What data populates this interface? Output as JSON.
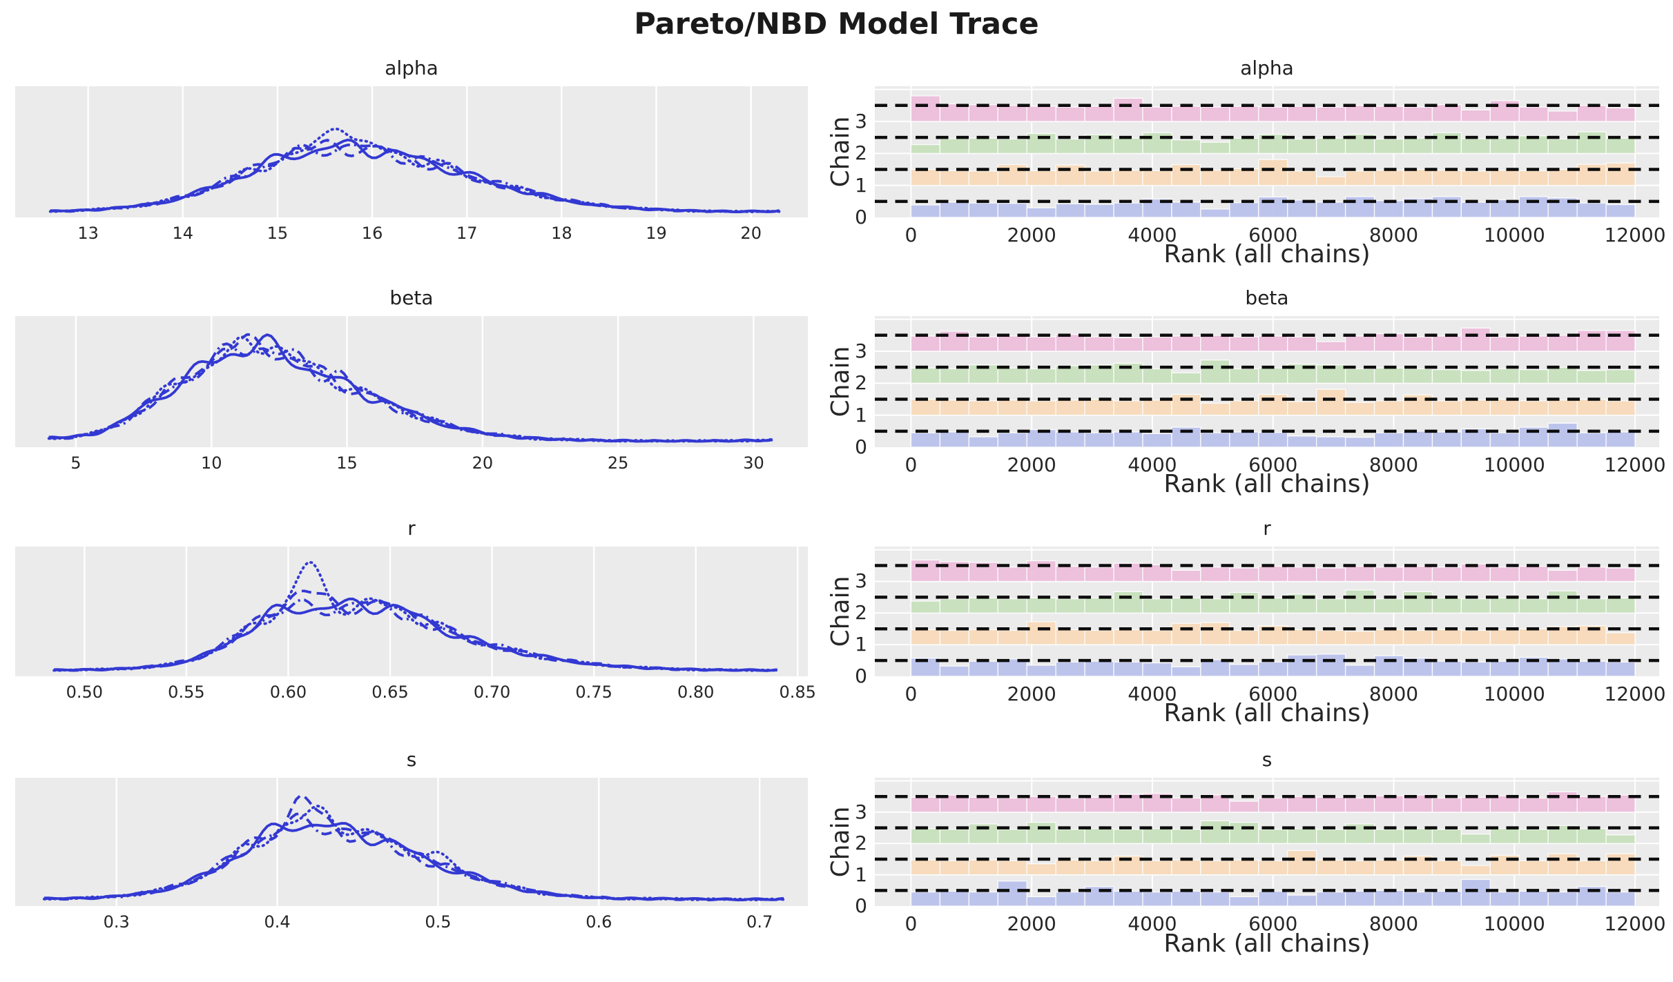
{
  "title": "Pareto/NBD Model Trace",
  "rank_xlabel": "Rank (all chains)",
  "rank_ylabel": "Chain",
  "style": {
    "figure_bg": "#ffffff",
    "axes_bg": "#ebebeb",
    "grid_color": "#ffffff",
    "kde_color": "#3339d2",
    "ref_line_color": "#0d0d0d",
    "text_color": "#262626",
    "chain_bar_colors": [
      "#b8c0ec",
      "#f7d9b7",
      "#c6dfba",
      "#edbcda"
    ],
    "chain_linestyles": [
      "solid",
      "dashed",
      "dashdot",
      "dotted"
    ]
  },
  "chart_data": {
    "type": "trace",
    "n_chains": 4,
    "draws_total": 12000,
    "rank_bins": 25,
    "rank_yticks": [
      "0",
      "1",
      "2",
      "3"
    ],
    "rank_xticks": {
      "values": [
        0,
        2000,
        4000,
        6000,
        8000,
        10000,
        12000
      ],
      "labels": [
        "0",
        "2000",
        "4000",
        "6000",
        "8000",
        "10000",
        "12000"
      ],
      "xlim": [
        -600,
        12400
      ]
    },
    "params": [
      {
        "name": "alpha",
        "kde": {
          "xlim": [
            12.23,
            20.6
          ],
          "ticks": [
            13,
            14,
            15,
            16,
            17,
            18,
            19,
            20
          ],
          "tick_labels": [
            "13",
            "14",
            "15",
            "16",
            "17",
            "18",
            "19",
            "20"
          ],
          "ymax": 1.85,
          "points": [
            [
              12.6,
              0.03
            ],
            [
              13.0,
              0.045
            ],
            [
              13.4,
              0.09
            ],
            [
              13.8,
              0.16
            ],
            [
              14.2,
              0.32
            ],
            [
              14.6,
              0.55
            ],
            [
              15.0,
              0.8
            ],
            [
              15.3,
              0.93
            ],
            [
              15.6,
              1.0
            ],
            [
              15.9,
              0.97
            ],
            [
              16.2,
              0.92
            ],
            [
              16.5,
              0.78
            ],
            [
              16.8,
              0.68
            ],
            [
              17.1,
              0.52
            ],
            [
              17.4,
              0.4
            ],
            [
              17.7,
              0.3
            ],
            [
              18.0,
              0.2
            ],
            [
              18.3,
              0.13
            ],
            [
              18.7,
              0.08
            ],
            [
              19.0,
              0.055
            ],
            [
              19.4,
              0.035
            ],
            [
              19.8,
              0.025
            ],
            [
              20.3,
              0.03
            ]
          ],
          "spikes": [
            {
              "chain": 3,
              "x": 15.65,
              "amp": 0.38,
              "w": 0.12
            },
            {
              "chain": 1,
              "x": 15.15,
              "amp": 0.1,
              "w": 0.1
            }
          ]
        },
        "rank_rel_heights": [
          [
            0.78,
            0.95,
            0.9,
            0.88,
            0.6,
            0.85,
            0.82,
            0.9,
            1.15,
            0.95,
            0.52,
            0.92,
            1.28,
            1.08,
            0.95,
            1.3,
            1.05,
            1.18,
            1.3,
            0.95,
            1.1,
            1.3,
            1.22,
            0.9,
            0.8
          ],
          [
            1.0,
            0.92,
            0.9,
            1.3,
            0.92,
            1.28,
            0.9,
            0.95,
            0.92,
            1.3,
            0.95,
            1.05,
            1.62,
            0.9,
            0.55,
            0.9,
            0.95,
            1.0,
            0.95,
            0.9,
            0.95,
            0.92,
            1.0,
            1.32,
            1.4
          ],
          [
            0.55,
            0.92,
            0.95,
            0.9,
            1.25,
            0.9,
            1.18,
            0.95,
            1.3,
            0.85,
            0.7,
            0.95,
            1.2,
            0.9,
            0.95,
            1.2,
            0.9,
            0.95,
            1.3,
            0.92,
            0.95,
            1.1,
            0.9,
            1.35,
            0.95
          ],
          [
            1.6,
            1.1,
            1.05,
            1.0,
            0.95,
            0.9,
            0.95,
            1.45,
            0.9,
            0.95,
            0.9,
            0.95,
            0.9,
            0.95,
            0.9,
            1.0,
            0.95,
            0.9,
            1.05,
            0.72,
            1.3,
            0.9,
            0.65,
            1.0,
            0.85
          ]
        ]
      },
      {
        "name": "beta",
        "kde": {
          "xlim": [
            2.76,
            32.0
          ],
          "ticks": [
            5,
            10,
            15,
            20,
            25,
            30
          ],
          "tick_labels": [
            "5",
            "10",
            "15",
            "20",
            "25",
            "30"
          ],
          "ymax": 1.25,
          "points": [
            [
              4.0,
              0.05
            ],
            [
              4.8,
              0.055
            ],
            [
              5.6,
              0.09
            ],
            [
              6.4,
              0.16
            ],
            [
              7.2,
              0.3
            ],
            [
              8.0,
              0.46
            ],
            [
              8.8,
              0.6
            ],
            [
              9.6,
              0.75
            ],
            [
              10.4,
              0.88
            ],
            [
              11.2,
              0.97
            ],
            [
              11.8,
              1.0
            ],
            [
              12.4,
              0.94
            ],
            [
              13.2,
              0.82
            ],
            [
              14.0,
              0.7
            ],
            [
              14.8,
              0.6
            ],
            [
              15.6,
              0.5
            ],
            [
              16.4,
              0.42
            ],
            [
              17.2,
              0.32
            ],
            [
              18.0,
              0.24
            ],
            [
              18.8,
              0.17
            ],
            [
              19.6,
              0.12
            ],
            [
              20.4,
              0.085
            ],
            [
              21.2,
              0.06
            ],
            [
              22.0,
              0.045
            ],
            [
              23.0,
              0.035
            ],
            [
              24.5,
              0.025
            ],
            [
              26.0,
              0.02
            ],
            [
              27.5,
              0.02
            ],
            [
              29.0,
              0.022
            ],
            [
              30.0,
              0.025
            ],
            [
              30.7,
              0.03
            ]
          ],
          "spikes": [
            {
              "chain": 1,
              "x": 10.4,
              "amp": 0.14,
              "w": 0.25
            },
            {
              "chain": 3,
              "x": 12.2,
              "amp": 0.08,
              "w": 0.3
            },
            {
              "chain": 2,
              "x": 14.7,
              "amp": 0.12,
              "w": 0.25
            }
          ]
        },
        "rank_rel_heights": [
          [
            0.9,
            0.95,
            0.65,
            0.9,
            1.1,
            0.95,
            0.9,
            0.95,
            0.85,
            1.25,
            0.9,
            0.95,
            0.92,
            0.7,
            0.65,
            0.62,
            0.9,
            1.0,
            0.95,
            1.15,
            0.9,
            1.25,
            1.5,
            0.9,
            0.95
          ],
          [
            1.0,
            0.95,
            0.9,
            0.95,
            0.9,
            0.95,
            1.0,
            0.9,
            0.95,
            1.3,
            0.75,
            0.9,
            1.3,
            0.85,
            1.62,
            0.8,
            0.9,
            1.28,
            0.9,
            0.95,
            1.0,
            0.9,
            0.95,
            1.0,
            0.9
          ],
          [
            0.95,
            0.9,
            1.15,
            0.95,
            0.9,
            1.1,
            1.15,
            1.25,
            0.9,
            0.65,
            1.45,
            0.9,
            0.95,
            1.2,
            1.15,
            0.9,
            0.95,
            0.9,
            0.85,
            0.8,
            0.9,
            0.85,
            1.0,
            0.8,
            0.85
          ],
          [
            0.95,
            1.25,
            0.9,
            0.95,
            0.9,
            1.05,
            0.9,
            0.85,
            0.9,
            0.95,
            1.0,
            0.9,
            0.95,
            0.9,
            0.6,
            0.95,
            1.1,
            0.9,
            0.95,
            1.45,
            0.9,
            0.95,
            1.0,
            1.3,
            1.3
          ]
        ]
      },
      {
        "name": "r",
        "kde": {
          "xlim": [
            0.466,
            0.855
          ],
          "ticks": [
            0.5,
            0.55,
            0.6,
            0.65,
            0.7,
            0.75,
            0.8,
            0.85
          ],
          "tick_labels": [
            "0.50",
            "0.55",
            "0.60",
            "0.65",
            "0.70",
            "0.75",
            "0.80",
            "0.85"
          ],
          "ymax": 1.8,
          "points": [
            [
              0.485,
              0.03
            ],
            [
              0.5,
              0.035
            ],
            [
              0.515,
              0.045
            ],
            [
              0.53,
              0.07
            ],
            [
              0.545,
              0.12
            ],
            [
              0.558,
              0.22
            ],
            [
              0.57,
              0.42
            ],
            [
              0.582,
              0.65
            ],
            [
              0.59,
              0.85
            ],
            [
              0.6,
              0.93
            ],
            [
              0.61,
              0.96
            ],
            [
              0.62,
              0.94
            ],
            [
              0.632,
              0.97
            ],
            [
              0.645,
              1.0
            ],
            [
              0.655,
              0.93
            ],
            [
              0.665,
              0.78
            ],
            [
              0.675,
              0.64
            ],
            [
              0.685,
              0.52
            ],
            [
              0.695,
              0.42
            ],
            [
              0.705,
              0.35
            ],
            [
              0.715,
              0.28
            ],
            [
              0.725,
              0.22
            ],
            [
              0.74,
              0.15
            ],
            [
              0.755,
              0.1
            ],
            [
              0.77,
              0.07
            ],
            [
              0.79,
              0.045
            ],
            [
              0.81,
              0.032
            ],
            [
              0.84,
              0.028
            ]
          ],
          "spikes": [
            {
              "chain": 3,
              "x": 0.61,
              "amp": 0.62,
              "w": 0.006
            },
            {
              "chain": 1,
              "x": 0.607,
              "amp": 0.25,
              "w": 0.008
            }
          ]
        },
        "rank_rel_heights": [
          [
            1.15,
            0.65,
            0.95,
            1.1,
            0.7,
            0.9,
            0.95,
            0.9,
            0.85,
            0.6,
            1.05,
            0.75,
            0.9,
            1.35,
            1.4,
            0.7,
            1.3,
            1.15,
            0.95,
            0.9,
            0.95,
            1.2,
            1.1,
            0.95,
            0.9
          ],
          [
            0.95,
            0.9,
            0.95,
            0.9,
            1.45,
            0.95,
            0.9,
            0.95,
            0.9,
            1.35,
            1.4,
            0.9,
            1.2,
            0.95,
            0.9,
            0.85,
            0.95,
            0.9,
            0.95,
            0.9,
            0.95,
            1.0,
            1.15,
            1.2,
            0.75
          ],
          [
            0.75,
            0.9,
            0.95,
            0.9,
            0.95,
            0.9,
            0.95,
            1.35,
            0.9,
            0.95,
            0.9,
            1.3,
            0.95,
            1.2,
            0.9,
            1.45,
            0.9,
            1.35,
            0.95,
            0.9,
            0.95,
            0.9,
            1.4,
            0.9,
            0.95
          ],
          [
            1.35,
            1.25,
            1.2,
            0.9,
            1.3,
            0.95,
            0.9,
            1.15,
            1.05,
            0.7,
            0.9,
            0.85,
            0.95,
            0.9,
            0.85,
            0.95,
            0.9,
            0.95,
            0.9,
            1.1,
            0.9,
            0.95,
            0.7,
            0.9,
            0.85
          ]
        ]
      },
      {
        "name": "s",
        "kde": {
          "xlim": [
            0.237,
            0.73
          ],
          "ticks": [
            0.3,
            0.4,
            0.5,
            0.6,
            0.7
          ],
          "tick_labels": [
            "0.3",
            "0.4",
            "0.5",
            "0.6",
            "0.7"
          ],
          "ymax": 1.5,
          "points": [
            [
              0.255,
              0.04
            ],
            [
              0.275,
              0.045
            ],
            [
              0.295,
              0.06
            ],
            [
              0.315,
              0.1
            ],
            [
              0.335,
              0.17
            ],
            [
              0.352,
              0.3
            ],
            [
              0.368,
              0.48
            ],
            [
              0.382,
              0.68
            ],
            [
              0.395,
              0.85
            ],
            [
              0.407,
              0.95
            ],
            [
              0.417,
              1.0
            ],
            [
              0.428,
              0.96
            ],
            [
              0.44,
              0.9
            ],
            [
              0.452,
              0.8
            ],
            [
              0.465,
              0.82
            ],
            [
              0.475,
              0.7
            ],
            [
              0.488,
              0.55
            ],
            [
              0.5,
              0.46
            ],
            [
              0.512,
              0.38
            ],
            [
              0.525,
              0.3
            ],
            [
              0.54,
              0.21
            ],
            [
              0.555,
              0.14
            ],
            [
              0.57,
              0.095
            ],
            [
              0.59,
              0.06
            ],
            [
              0.615,
              0.04
            ],
            [
              0.64,
              0.04
            ],
            [
              0.665,
              0.035
            ],
            [
              0.69,
              0.03
            ],
            [
              0.715,
              0.035
            ]
          ],
          "spikes": [
            {
              "chain": 1,
              "x": 0.415,
              "amp": 0.35,
              "w": 0.006
            },
            {
              "chain": 3,
              "x": 0.43,
              "amp": 0.18,
              "w": 0.008
            },
            {
              "chain": 3,
              "x": 0.5,
              "amp": 0.1,
              "w": 0.01
            }
          ]
        },
        "rank_rel_heights": [
          [
            0.9,
            0.95,
            0.9,
            1.6,
            0.6,
            0.9,
            1.25,
            0.95,
            0.9,
            0.95,
            0.9,
            0.6,
            0.95,
            0.7,
            0.9,
            0.95,
            1.0,
            0.9,
            0.95,
            1.7,
            0.9,
            0.95,
            0.9,
            1.25,
            0.9
          ],
          [
            0.95,
            0.9,
            0.95,
            0.9,
            0.7,
            0.95,
            0.9,
            1.2,
            0.9,
            0.95,
            0.9,
            0.95,
            0.9,
            1.55,
            0.95,
            0.9,
            0.95,
            1.2,
            0.9,
            0.6,
            1.25,
            0.9,
            1.35,
            0.9,
            1.35
          ],
          [
            0.95,
            0.9,
            1.25,
            0.9,
            1.35,
            0.9,
            0.95,
            0.9,
            0.95,
            0.9,
            1.45,
            1.35,
            0.9,
            0.95,
            0.9,
            1.25,
            0.9,
            0.95,
            0.9,
            0.6,
            0.95,
            0.9,
            1.15,
            0.95,
            0.55
          ],
          [
            0.95,
            1.1,
            0.95,
            0.9,
            1.0,
            0.9,
            0.95,
            1.15,
            1.2,
            0.9,
            1.1,
            0.7,
            0.9,
            1.0,
            0.95,
            0.9,
            1.05,
            1.1,
            0.9,
            0.95,
            1.05,
            0.9,
            1.3,
            1.0,
            1.1
          ]
        ]
      }
    ]
  }
}
